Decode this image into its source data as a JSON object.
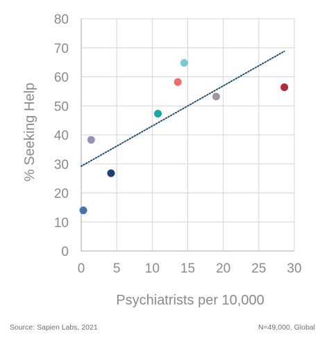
{
  "chart_data": {
    "type": "scatter",
    "xlabel": "Psychiatrists per 10,000",
    "ylabel": "% Seeking Help",
    "xlim": [
      0,
      30
    ],
    "ylim": [
      0,
      80
    ],
    "x_ticks": [
      "0",
      "5",
      "10",
      "15",
      "20",
      "25",
      "30"
    ],
    "y_ticks": [
      "0",
      "10",
      "20",
      "30",
      "40",
      "50",
      "60",
      "70",
      "80"
    ],
    "grid": true,
    "points": [
      {
        "x": 0.3,
        "y": 14.0,
        "color": "#4a73ad"
      },
      {
        "x": 1.4,
        "y": 38.3,
        "color": "#9b8fb8"
      },
      {
        "x": 4.2,
        "y": 26.8,
        "color": "#1e3f78"
      },
      {
        "x": 10.8,
        "y": 47.3,
        "color": "#16a7a8"
      },
      {
        "x": 13.6,
        "y": 58.2,
        "color": "#ef6a6a"
      },
      {
        "x": 14.5,
        "y": 64.8,
        "color": "#78cccd"
      },
      {
        "x": 19.0,
        "y": 53.2,
        "color": "#9a9aa0"
      },
      {
        "x": 28.6,
        "y": 56.4,
        "color": "#b02a3a"
      }
    ],
    "trendline": {
      "x": [
        0,
        28.6
      ],
      "y": [
        29.2,
        68.8
      ],
      "color": "#1e4f7a",
      "style": "dotted"
    }
  },
  "footer": {
    "source": "Source: Sapien Labs, 2021",
    "note": "N=49,000, Global"
  }
}
